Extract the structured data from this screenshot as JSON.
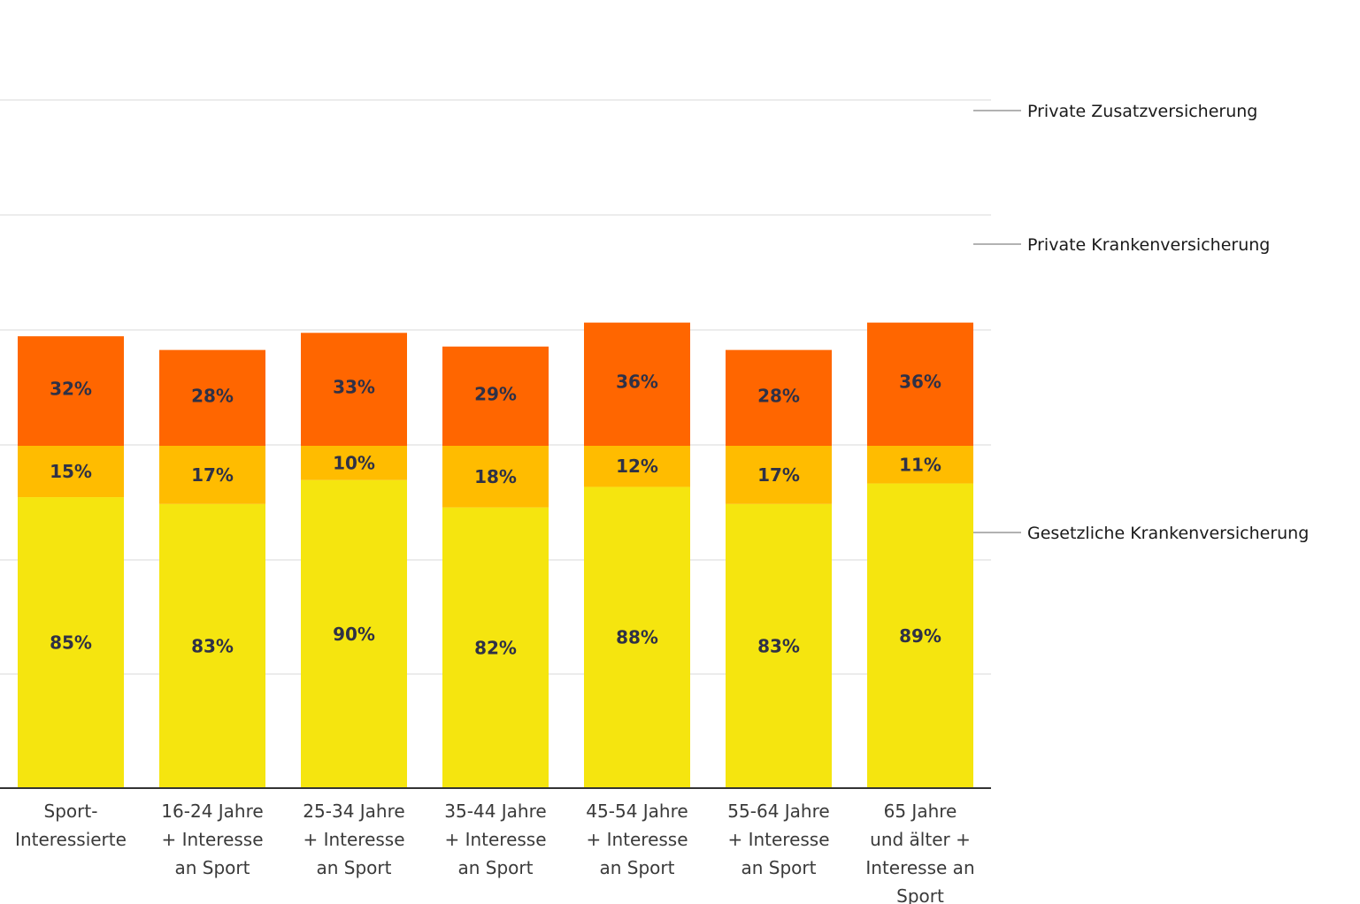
{
  "chart_data": {
    "type": "bar",
    "stacked": true,
    "categories": [
      [
        "Sport-",
        "Interessierte"
      ],
      [
        "16-24 Jahre",
        "+ Interesse",
        "an Sport"
      ],
      [
        "25-34 Jahre",
        "+ Interesse",
        "an Sport"
      ],
      [
        "35-44 Jahre",
        "+ Interesse",
        "an Sport"
      ],
      [
        "45-54 Jahre",
        "+ Interesse",
        "an Sport"
      ],
      [
        "55-64 Jahre",
        "+ Interesse",
        "an Sport"
      ],
      [
        "65 Jahre",
        "und älter +",
        "Interesse an",
        "Sport"
      ]
    ],
    "series": [
      {
        "name": "Gesetzliche Krankenversicherung",
        "color": "#f5e50f",
        "values": [
          85,
          83,
          90,
          82,
          88,
          83,
          89
        ],
        "labels": [
          "85%",
          "83%",
          "90%",
          "82%",
          "88%",
          "83%",
          "89%"
        ]
      },
      {
        "name": "Private Krankenversicherung",
        "color": "#ffbc00",
        "values": [
          15,
          17,
          10,
          18,
          12,
          17,
          11
        ],
        "labels": [
          "15%",
          "17%",
          "10%",
          "18%",
          "12%",
          "17%",
          "11%"
        ]
      },
      {
        "name": "Private Zusatzversicherung",
        "color": "#ff6600",
        "values": [
          32,
          28,
          33,
          29,
          36,
          28,
          36
        ],
        "labels": [
          "32%",
          "28%",
          "33%",
          "29%",
          "36%",
          "28%",
          "36%"
        ]
      }
    ],
    "legend_placement": "right",
    "grid": true,
    "ylim": [
      0,
      136
    ]
  }
}
